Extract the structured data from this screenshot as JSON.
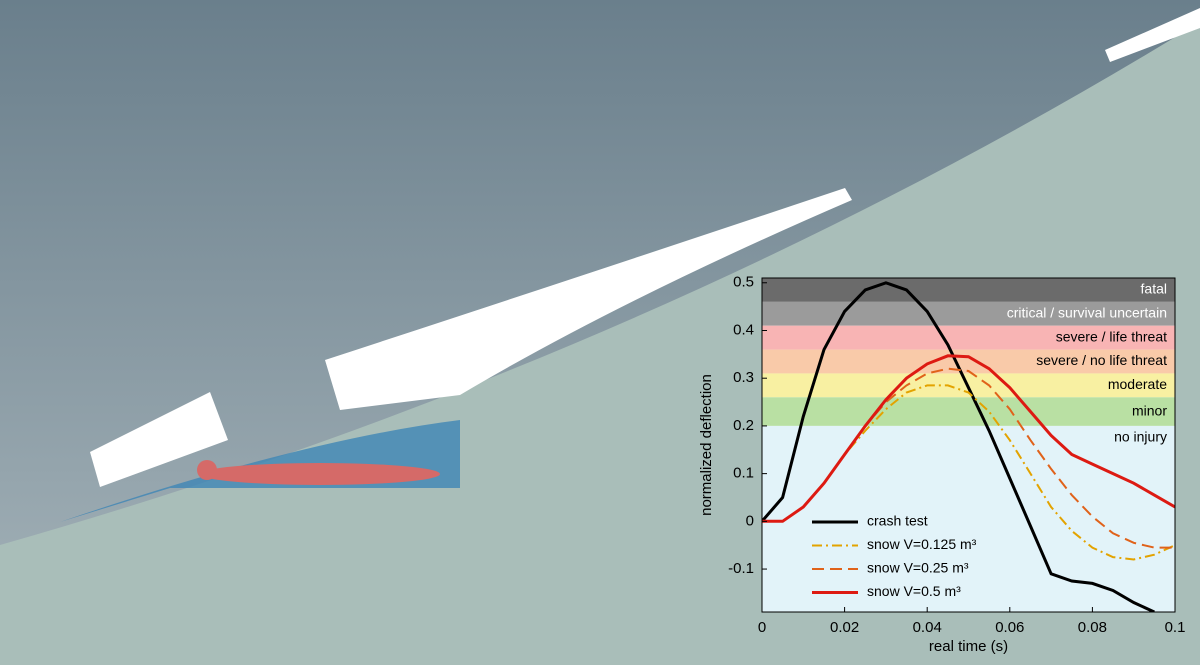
{
  "chart_data": {
    "type": "line",
    "xlabel": "real time (s)",
    "ylabel": "normalized deflection",
    "xlim": [
      0,
      0.1
    ],
    "ylim": [
      -0.19,
      0.51
    ],
    "xticks": [
      0,
      0.02,
      0.04,
      0.06,
      0.08,
      0.1
    ],
    "yticks": [
      -0.1,
      0,
      0.1,
      0.2,
      0.3,
      0.4,
      0.5
    ],
    "bands": [
      {
        "label": "fatal",
        "from": 0.46,
        "to": 0.51,
        "color": "#6b6b6b"
      },
      {
        "label": "critical / survival uncertain",
        "from": 0.41,
        "to": 0.46,
        "color": "#9b9b9b"
      },
      {
        "label": "severe / life threat",
        "from": 0.36,
        "to": 0.41,
        "color": "#f8b4b4"
      },
      {
        "label": "severe / no life threat",
        "from": 0.31,
        "to": 0.36,
        "color": "#f9caa9"
      },
      {
        "label": "moderate",
        "from": 0.26,
        "to": 0.31,
        "color": "#f8f0a2"
      },
      {
        "label": "minor",
        "from": 0.2,
        "to": 0.26,
        "color": "#b9e0a3"
      },
      {
        "label": "no injury",
        "from": -0.19,
        "to": 0.2,
        "color": "#e2f3f9"
      }
    ],
    "x": [
      0,
      0.005,
      0.01,
      0.015,
      0.02,
      0.025,
      0.03,
      0.035,
      0.04,
      0.045,
      0.05,
      0.055,
      0.06,
      0.065,
      0.07,
      0.075,
      0.08,
      0.085,
      0.09,
      0.095,
      0.1
    ],
    "series": [
      {
        "name": "crash test",
        "color": "#000000",
        "dash": "solid",
        "values": [
          0,
          0.05,
          0.22,
          0.36,
          0.44,
          0.485,
          0.5,
          0.485,
          0.44,
          0.37,
          0.28,
          0.19,
          0.09,
          -0.01,
          -0.11,
          -0.125,
          -0.13,
          -0.145,
          -0.17,
          -0.19,
          null
        ]
      },
      {
        "name": "snow V=0.125 m³",
        "color": "#e3a300",
        "dash": "dashdot",
        "values": [
          0,
          0,
          0.03,
          0.08,
          0.14,
          0.19,
          0.235,
          0.27,
          0.285,
          0.285,
          0.27,
          0.23,
          0.17,
          0.1,
          0.03,
          -0.02,
          -0.055,
          -0.075,
          -0.08,
          -0.07,
          -0.05
        ]
      },
      {
        "name": "snow V=0.25 m³",
        "color": "#e0621a",
        "dash": "dashed",
        "values": [
          0,
          0,
          0.03,
          0.08,
          0.14,
          0.2,
          0.25,
          0.285,
          0.31,
          0.32,
          0.315,
          0.285,
          0.235,
          0.17,
          0.11,
          0.055,
          0.01,
          -0.025,
          -0.045,
          -0.055,
          -0.055
        ]
      },
      {
        "name": "snow V=0.5 m³",
        "color": "#dd1a12",
        "dash": "solid",
        "values": [
          0,
          0,
          0.03,
          0.08,
          0.14,
          0.2,
          0.255,
          0.3,
          0.33,
          0.347,
          0.345,
          0.32,
          0.28,
          0.23,
          0.18,
          0.14,
          0.12,
          0.1,
          0.08,
          0.055,
          0.03
        ]
      }
    ]
  }
}
